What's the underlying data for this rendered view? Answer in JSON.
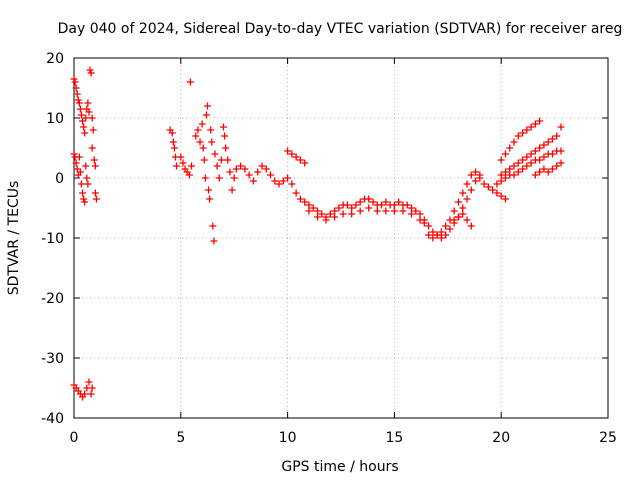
{
  "chart_data": {
    "type": "scatter",
    "title": "Day 040 of 2024, Sidereal Day-to-day VTEC variation (SDTVAR) for receiver areg",
    "xlabel": "GPS time / hours",
    "ylabel": "SDTVAR / TECUs",
    "xlim": [
      0,
      25
    ],
    "ylim": [
      -40,
      20
    ],
    "xticks": [
      0,
      5,
      10,
      15,
      20,
      25
    ],
    "yticks": [
      -40,
      -30,
      -20,
      -10,
      0,
      10,
      20
    ],
    "xtick_labels": [
      "0",
      "5",
      "10",
      "15",
      "20",
      "25"
    ],
    "ytick_labels": [
      "-40",
      "-30",
      "-20",
      "-10",
      "0",
      "10",
      "20"
    ],
    "grid": true,
    "marker": "+",
    "color": "#ff0000",
    "series": [
      {
        "name": "SDTVAR",
        "points": [
          [
            0.0,
            16.5
          ],
          [
            0.05,
            16.0
          ],
          [
            0.1,
            15.0
          ],
          [
            0.15,
            14.0
          ],
          [
            0.2,
            13.0
          ],
          [
            0.25,
            12.5
          ],
          [
            0.3,
            11.5
          ],
          [
            0.35,
            10.5
          ],
          [
            0.4,
            9.5
          ],
          [
            0.45,
            8.5
          ],
          [
            0.5,
            7.5
          ],
          [
            0.55,
            10.0
          ],
          [
            0.6,
            11.5
          ],
          [
            0.65,
            12.5
          ],
          [
            0.7,
            11.0
          ],
          [
            0.75,
            18.0
          ],
          [
            0.8,
            17.5
          ],
          [
            0.85,
            10.0
          ],
          [
            0.9,
            8.0
          ],
          [
            0.95,
            3.0
          ],
          [
            1.0,
            2.0
          ],
          [
            0.0,
            4.0
          ],
          [
            0.05,
            3.5
          ],
          [
            0.1,
            2.5
          ],
          [
            0.15,
            1.5
          ],
          [
            0.2,
            0.5
          ],
          [
            0.25,
            3.5
          ],
          [
            0.3,
            1.0
          ],
          [
            0.35,
            -1.0
          ],
          [
            0.4,
            -2.5
          ],
          [
            0.45,
            -3.5
          ],
          [
            0.5,
            -4.0
          ],
          [
            0.55,
            2.0
          ],
          [
            0.6,
            0.0
          ],
          [
            0.65,
            -1.0
          ],
          [
            1.0,
            -2.5
          ],
          [
            1.05,
            -3.5
          ],
          [
            0.85,
            5.0
          ],
          [
            0.0,
            -34.5
          ],
          [
            0.1,
            -35.0
          ],
          [
            0.2,
            -35.5
          ],
          [
            0.3,
            -36.0
          ],
          [
            0.4,
            -36.5
          ],
          [
            0.5,
            -36.0
          ],
          [
            0.6,
            -35.0
          ],
          [
            0.7,
            -34.0
          ],
          [
            0.8,
            -36.0
          ],
          [
            0.85,
            -35.0
          ],
          [
            4.5,
            8.0
          ],
          [
            4.6,
            7.5
          ],
          [
            4.65,
            6.0
          ],
          [
            4.7,
            5.0
          ],
          [
            4.75,
            3.5
          ],
          [
            4.8,
            2.0
          ],
          [
            5.0,
            3.5
          ],
          [
            5.1,
            2.5
          ],
          [
            5.2,
            1.5
          ],
          [
            5.3,
            1.0
          ],
          [
            5.4,
            0.5
          ],
          [
            5.5,
            2.0
          ],
          [
            5.45,
            16.0
          ],
          [
            5.7,
            7.0
          ],
          [
            5.8,
            8.0
          ],
          [
            5.9,
            6.0
          ],
          [
            6.0,
            9.0
          ],
          [
            6.05,
            5.0
          ],
          [
            6.1,
            3.0
          ],
          [
            6.15,
            0.0
          ],
          [
            6.2,
            10.5
          ],
          [
            6.25,
            12.0
          ],
          [
            6.3,
            -2.0
          ],
          [
            6.35,
            -3.5
          ],
          [
            6.4,
            8.0
          ],
          [
            6.45,
            6.0
          ],
          [
            6.5,
            -8.0
          ],
          [
            6.55,
            -10.5
          ],
          [
            6.6,
            4.0
          ],
          [
            6.7,
            2.0
          ],
          [
            6.8,
            0.0
          ],
          [
            6.9,
            3.0
          ],
          [
            7.0,
            8.5
          ],
          [
            7.05,
            7.0
          ],
          [
            7.1,
            5.0
          ],
          [
            7.2,
            3.0
          ],
          [
            7.3,
            1.0
          ],
          [
            7.4,
            -2.0
          ],
          [
            7.5,
            0.0
          ],
          [
            7.6,
            1.5
          ],
          [
            7.8,
            2.0
          ],
          [
            8.0,
            1.5
          ],
          [
            8.2,
            0.5
          ],
          [
            8.4,
            -0.5
          ],
          [
            8.6,
            1.0
          ],
          [
            8.8,
            2.0
          ],
          [
            9.0,
            1.5
          ],
          [
            9.2,
            0.5
          ],
          [
            9.4,
            -0.5
          ],
          [
            9.6,
            -1.0
          ],
          [
            9.8,
            -0.5
          ],
          [
            10.0,
            0.0
          ],
          [
            10.2,
            -1.0
          ],
          [
            10.4,
            -2.5
          ],
          [
            10.0,
            4.5
          ],
          [
            10.2,
            4.0
          ],
          [
            10.4,
            3.5
          ],
          [
            10.6,
            3.0
          ],
          [
            10.8,
            2.5
          ],
          [
            10.6,
            -3.5
          ],
          [
            10.8,
            -4.0
          ],
          [
            11.0,
            -4.5
          ],
          [
            11.2,
            -5.0
          ],
          [
            11.4,
            -5.5
          ],
          [
            11.6,
            -6.0
          ],
          [
            11.8,
            -6.5
          ],
          [
            12.0,
            -6.0
          ],
          [
            12.2,
            -5.5
          ],
          [
            12.4,
            -5.0
          ],
          [
            12.6,
            -4.5
          ],
          [
            12.8,
            -4.5
          ],
          [
            13.0,
            -5.0
          ],
          [
            13.2,
            -4.5
          ],
          [
            13.4,
            -4.0
          ],
          [
            13.6,
            -3.5
          ],
          [
            13.8,
            -3.5
          ],
          [
            14.0,
            -4.0
          ],
          [
            14.2,
            -4.5
          ],
          [
            14.4,
            -4.5
          ],
          [
            14.6,
            -4.0
          ],
          [
            14.8,
            -4.5
          ],
          [
            15.0,
            -4.5
          ],
          [
            15.2,
            -4.0
          ],
          [
            15.4,
            -4.5
          ],
          [
            15.6,
            -4.5
          ],
          [
            15.8,
            -5.0
          ],
          [
            16.0,
            -5.5
          ],
          [
            16.2,
            -6.0
          ],
          [
            16.4,
            -7.0
          ],
          [
            11.0,
            -5.5
          ],
          [
            11.4,
            -6.5
          ],
          [
            11.8,
            -7.0
          ],
          [
            12.2,
            -6.5
          ],
          [
            12.6,
            -6.0
          ],
          [
            13.0,
            -6.0
          ],
          [
            13.4,
            -5.5
          ],
          [
            13.8,
            -5.0
          ],
          [
            14.2,
            -5.5
          ],
          [
            14.6,
            -5.5
          ],
          [
            15.0,
            -5.5
          ],
          [
            15.4,
            -5.5
          ],
          [
            15.8,
            -6.0
          ],
          [
            16.2,
            -7.0
          ],
          [
            16.4,
            -7.5
          ],
          [
            16.6,
            -8.0
          ],
          [
            16.8,
            -9.0
          ],
          [
            17.0,
            -9.5
          ],
          [
            17.2,
            -10.0
          ],
          [
            17.4,
            -9.5
          ],
          [
            17.6,
            -8.5
          ],
          [
            17.8,
            -7.5
          ],
          [
            18.0,
            -6.5
          ],
          [
            18.2,
            -5.0
          ],
          [
            18.4,
            -3.5
          ],
          [
            18.6,
            -2.0
          ],
          [
            18.8,
            -0.5
          ],
          [
            19.0,
            0.5
          ],
          [
            16.6,
            -9.5
          ],
          [
            16.8,
            -10.0
          ],
          [
            17.0,
            -9.5
          ],
          [
            17.2,
            -9.0
          ],
          [
            17.4,
            -8.0
          ],
          [
            17.6,
            -7.0
          ],
          [
            17.8,
            -5.5
          ],
          [
            18.0,
            -4.0
          ],
          [
            18.2,
            -2.5
          ],
          [
            18.4,
            -1.0
          ],
          [
            18.6,
            0.5
          ],
          [
            18.8,
            1.0
          ],
          [
            17.8,
            -7.0
          ],
          [
            18.0,
            -6.5
          ],
          [
            18.2,
            -6.0
          ],
          [
            18.4,
            -7.0
          ],
          [
            18.6,
            -8.0
          ],
          [
            19.0,
            0.0
          ],
          [
            19.2,
            -1.0
          ],
          [
            19.4,
            -1.5
          ],
          [
            19.6,
            -2.0
          ],
          [
            19.8,
            -2.5
          ],
          [
            20.0,
            -3.0
          ],
          [
            20.2,
            -3.5
          ],
          [
            20.0,
            0.5
          ],
          [
            20.2,
            1.0
          ],
          [
            20.4,
            1.5
          ],
          [
            20.6,
            2.0
          ],
          [
            20.8,
            2.5
          ],
          [
            21.0,
            3.0
          ],
          [
            21.2,
            3.5
          ],
          [
            21.4,
            4.0
          ],
          [
            21.6,
            4.5
          ],
          [
            21.8,
            5.0
          ],
          [
            22.0,
            5.5
          ],
          [
            22.2,
            6.0
          ],
          [
            22.4,
            6.5
          ],
          [
            22.6,
            7.0
          ],
          [
            22.8,
            8.5
          ],
          [
            20.0,
            3.0
          ],
          [
            20.2,
            4.0
          ],
          [
            20.4,
            5.0
          ],
          [
            20.6,
            6.0
          ],
          [
            20.8,
            7.0
          ],
          [
            21.0,
            7.5
          ],
          [
            21.2,
            8.0
          ],
          [
            21.4,
            8.5
          ],
          [
            21.6,
            9.0
          ],
          [
            21.8,
            9.5
          ],
          [
            19.8,
            -1.0
          ],
          [
            20.0,
            -0.5
          ],
          [
            20.2,
            0.0
          ],
          [
            20.4,
            0.5
          ],
          [
            20.6,
            0.5
          ],
          [
            20.8,
            1.0
          ],
          [
            21.0,
            1.5
          ],
          [
            21.2,
            2.0
          ],
          [
            21.4,
            2.5
          ],
          [
            21.6,
            3.0
          ],
          [
            21.8,
            3.0
          ],
          [
            22.0,
            3.5
          ],
          [
            22.2,
            4.0
          ],
          [
            22.4,
            4.0
          ],
          [
            22.6,
            4.5
          ],
          [
            22.8,
            4.5
          ],
          [
            21.6,
            0.5
          ],
          [
            21.8,
            1.0
          ],
          [
            22.0,
            1.5
          ],
          [
            22.2,
            1.0
          ],
          [
            22.4,
            1.5
          ],
          [
            22.6,
            2.0
          ],
          [
            22.8,
            2.5
          ]
        ]
      }
    ]
  }
}
